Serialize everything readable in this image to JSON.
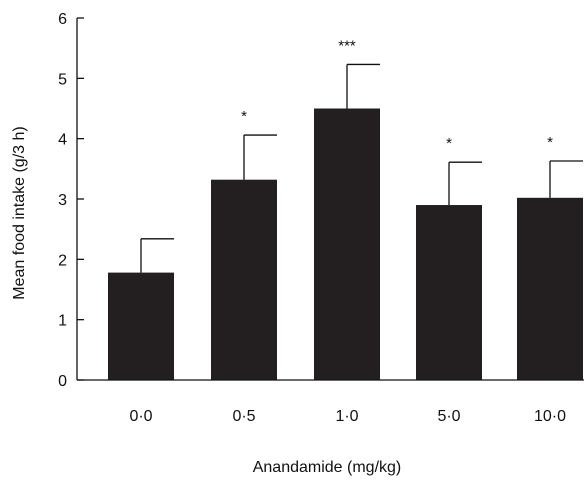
{
  "chart_data": {
    "type": "bar",
    "title": "",
    "xlabel": "Anandamide (mg/kg)",
    "ylabel": "Mean food intake (g/3 h)",
    "categories": [
      "0·0",
      "0·5",
      "1·0",
      "5·0",
      "10·0"
    ],
    "values": [
      1.78,
      3.32,
      4.5,
      2.9,
      3.02
    ],
    "error_upper": [
      0.56,
      0.74,
      0.73,
      0.71,
      0.61
    ],
    "significance": [
      "",
      "*",
      "***",
      "*",
      "*"
    ],
    "ylim": [
      0,
      6
    ],
    "yticks": [
      0,
      1,
      2,
      3,
      4,
      5,
      6
    ],
    "grid": false,
    "legend": "none",
    "colors": {
      "bar": "#231f20",
      "axis": "#111111",
      "text": "#111111",
      "background": "#ffffff"
    }
  }
}
